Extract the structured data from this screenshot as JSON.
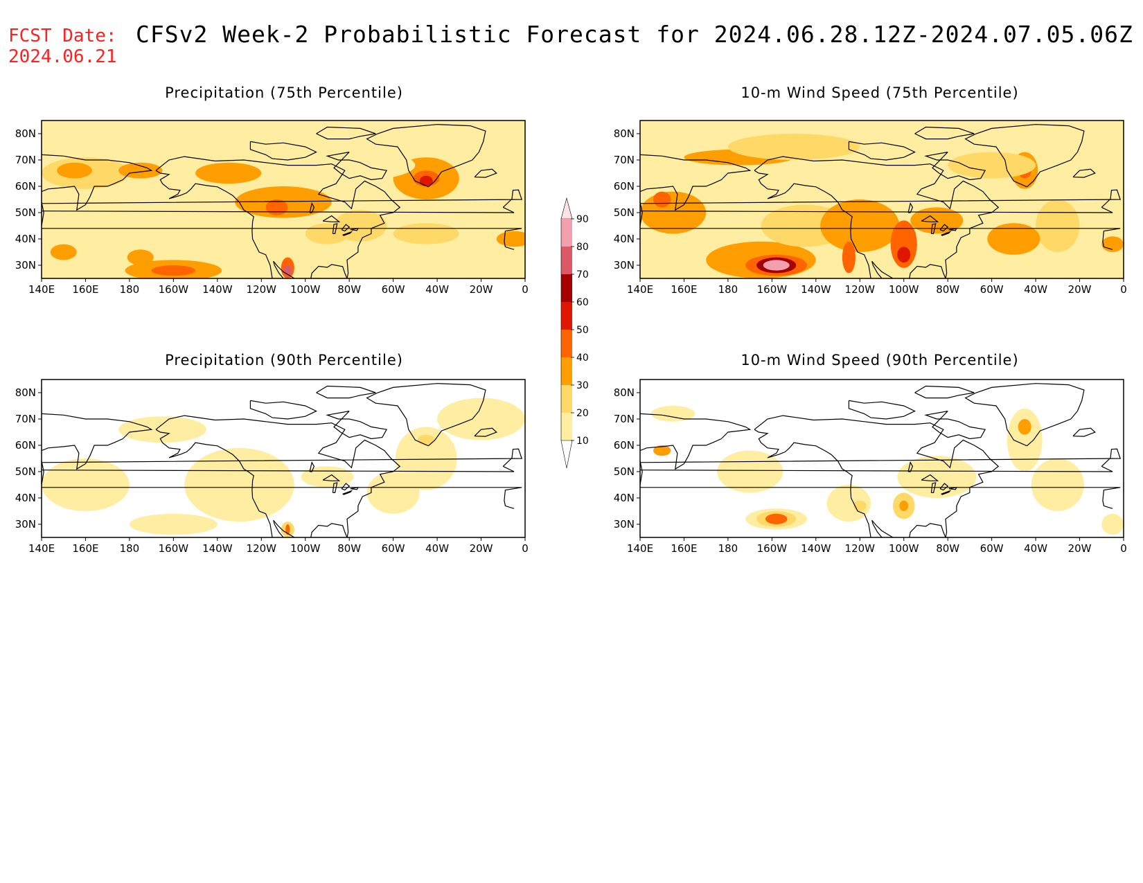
{
  "header": {
    "fcst_label": "FCST Date:",
    "fcst_date": "2024.06.21",
    "title": "CFSv2 Week-2 Probabilistic Forecast for 2024.06.28.12Z-2024.07.05.06Z"
  },
  "axes": {
    "lon_ticks": [
      "140E",
      "160E",
      "180",
      "160W",
      "140W",
      "120W",
      "100W",
      "80W",
      "60W",
      "40W",
      "20W",
      "0"
    ],
    "lat_ticks": [
      "80N",
      "70N",
      "60N",
      "50N",
      "40N",
      "30N"
    ]
  },
  "colorbar": {
    "levels": [
      10,
      20,
      30,
      40,
      50,
      60,
      70,
      80,
      90
    ],
    "colors": [
      "#ffffff",
      "#ffeea1",
      "#ffd968",
      "#ff9e00",
      "#ff6400",
      "#e11600",
      "#a50000",
      "#dc5a67",
      "#f2a0ae",
      "#fde2e6"
    ]
  },
  "panels": [
    {
      "title": "Precipitation (75th Percentile)",
      "background_level": 1,
      "blobs": [
        {
          "lon": -170,
          "lat": 77,
          "rx": 40,
          "ry": 4,
          "level": 1
        },
        {
          "lon": 160,
          "lat": 65,
          "rx": 20,
          "ry": 6,
          "level": 2
        },
        {
          "lon": 155,
          "lat": 66,
          "rx": 8,
          "ry": 3,
          "level": 3
        },
        {
          "lon": -175,
          "lat": 66,
          "rx": 10,
          "ry": 3,
          "level": 3
        },
        {
          "lon": -135,
          "lat": 65,
          "rx": 15,
          "ry": 4,
          "level": 3
        },
        {
          "lon": -150,
          "lat": 40,
          "rx": 12,
          "ry": 5,
          "level": 0
        },
        {
          "lon": -150,
          "lat": 40,
          "rx": 24,
          "ry": 8,
          "level": 1
        },
        {
          "lon": -160,
          "lat": 28,
          "rx": 22,
          "ry": 4,
          "level": 3
        },
        {
          "lon": -160,
          "lat": 28,
          "rx": 10,
          "ry": 2,
          "level": 4
        },
        {
          "lon": -110,
          "lat": 54,
          "rx": 22,
          "ry": 6,
          "level": 3
        },
        {
          "lon": -113,
          "lat": 52,
          "rx": 5,
          "ry": 3,
          "level": 4
        },
        {
          "lon": -108,
          "lat": 29,
          "rx": 3,
          "ry": 4,
          "level": 4
        },
        {
          "lon": -108,
          "lat": 28,
          "rx": 2,
          "ry": 2,
          "level": 7
        },
        {
          "lon": -45,
          "lat": 63,
          "rx": 15,
          "ry": 8,
          "level": 3
        },
        {
          "lon": -45,
          "lat": 63,
          "rx": 6,
          "ry": 3,
          "level": 4
        },
        {
          "lon": -45,
          "lat": 62,
          "rx": 3,
          "ry": 2,
          "level": 5
        },
        {
          "lon": -80,
          "lat": 68,
          "rx": 30,
          "ry": 6,
          "level": 1
        },
        {
          "lon": -75,
          "lat": 45,
          "rx": 12,
          "ry": 6,
          "level": 2
        },
        {
          "lon": -45,
          "lat": 42,
          "rx": 15,
          "ry": 4,
          "level": 2
        },
        {
          "lon": 150,
          "lat": 35,
          "rx": 6,
          "ry": 3,
          "level": 3
        },
        {
          "lon": -175,
          "lat": 33,
          "rx": 6,
          "ry": 3,
          "level": 3
        },
        {
          "lon": -5,
          "lat": 40,
          "rx": 8,
          "ry": 3,
          "level": 3
        },
        {
          "lon": -90,
          "lat": 42,
          "rx": 10,
          "ry": 4,
          "level": 2
        }
      ]
    },
    {
      "title": "10-m Wind Speed (75th Percentile)",
      "background_level": 1,
      "blobs": [
        {
          "lon": -165,
          "lat": 32,
          "rx": 25,
          "ry": 7,
          "level": 3
        },
        {
          "lon": -158,
          "lat": 30,
          "rx": 14,
          "ry": 4,
          "level": 4
        },
        {
          "lon": -158,
          "lat": 30,
          "rx": 9,
          "ry": 3,
          "level": 6
        },
        {
          "lon": -158,
          "lat": 30,
          "rx": 6,
          "ry": 2,
          "level": 8
        },
        {
          "lon": -145,
          "lat": 45,
          "rx": 20,
          "ry": 8,
          "level": 2
        },
        {
          "lon": 155,
          "lat": 50,
          "rx": 15,
          "ry": 8,
          "level": 3
        },
        {
          "lon": 150,
          "lat": 55,
          "rx": 4,
          "ry": 3,
          "level": 4
        },
        {
          "lon": -175,
          "lat": 71,
          "rx": 25,
          "ry": 3,
          "level": 3
        },
        {
          "lon": -120,
          "lat": 45,
          "rx": 18,
          "ry": 10,
          "level": 3
        },
        {
          "lon": -125,
          "lat": 33,
          "rx": 3,
          "ry": 6,
          "level": 4
        },
        {
          "lon": -100,
          "lat": 38,
          "rx": 6,
          "ry": 9,
          "level": 4
        },
        {
          "lon": -100,
          "lat": 34,
          "rx": 3,
          "ry": 3,
          "level": 5
        },
        {
          "lon": -85,
          "lat": 47,
          "rx": 12,
          "ry": 5,
          "level": 3
        },
        {
          "lon": -45,
          "lat": 66,
          "rx": 6,
          "ry": 7,
          "level": 3
        },
        {
          "lon": -45,
          "lat": 66,
          "rx": 3,
          "ry": 3,
          "level": 4
        },
        {
          "lon": -30,
          "lat": 45,
          "rx": 10,
          "ry": 10,
          "level": 2
        },
        {
          "lon": -50,
          "lat": 40,
          "rx": 12,
          "ry": 6,
          "level": 3
        },
        {
          "lon": -60,
          "lat": 68,
          "rx": 20,
          "ry": 5,
          "level": 2
        },
        {
          "lon": -150,
          "lat": 75,
          "rx": 30,
          "ry": 5,
          "level": 2
        },
        {
          "lon": -5,
          "lat": 38,
          "rx": 5,
          "ry": 3,
          "level": 3
        }
      ]
    },
    {
      "title": "Precipitation (90th Percentile)",
      "background_level": 0,
      "blobs": [
        {
          "lon": -45,
          "lat": 55,
          "rx": 14,
          "ry": 12,
          "level": 1
        },
        {
          "lon": -45,
          "lat": 62,
          "rx": 4,
          "ry": 2,
          "level": 2
        },
        {
          "lon": -20,
          "lat": 70,
          "rx": 20,
          "ry": 8,
          "level": 1
        },
        {
          "lon": -130,
          "lat": 45,
          "rx": 25,
          "ry": 14,
          "level": 1
        },
        {
          "lon": 160,
          "lat": 45,
          "rx": 20,
          "ry": 10,
          "level": 1
        },
        {
          "lon": -160,
          "lat": 30,
          "rx": 20,
          "ry": 4,
          "level": 1
        },
        {
          "lon": -108,
          "lat": 28,
          "rx": 3,
          "ry": 3,
          "level": 2
        },
        {
          "lon": -108,
          "lat": 28,
          "rx": 1,
          "ry": 2,
          "level": 4
        },
        {
          "lon": -90,
          "lat": 48,
          "rx": 12,
          "ry": 4,
          "level": 1
        },
        {
          "lon": -165,
          "lat": 66,
          "rx": 20,
          "ry": 5,
          "level": 1
        },
        {
          "lon": -60,
          "lat": 42,
          "rx": 12,
          "ry": 8,
          "level": 1
        }
      ]
    },
    {
      "title": "10-m Wind Speed (90th Percentile)",
      "background_level": 0,
      "blobs": [
        {
          "lon": -158,
          "lat": 32,
          "rx": 14,
          "ry": 4,
          "level": 1
        },
        {
          "lon": -158,
          "lat": 32,
          "rx": 9,
          "ry": 3,
          "level": 2
        },
        {
          "lon": -158,
          "lat": 32,
          "rx": 5,
          "ry": 2,
          "level": 4
        },
        {
          "lon": -100,
          "lat": 37,
          "rx": 5,
          "ry": 5,
          "level": 2
        },
        {
          "lon": -100,
          "lat": 37,
          "rx": 2,
          "ry": 2,
          "level": 3
        },
        {
          "lon": -85,
          "lat": 48,
          "rx": 18,
          "ry": 8,
          "level": 1
        },
        {
          "lon": -45,
          "lat": 62,
          "rx": 8,
          "ry": 12,
          "level": 1
        },
        {
          "lon": -45,
          "lat": 67,
          "rx": 3,
          "ry": 3,
          "level": 3
        },
        {
          "lon": -30,
          "lat": 45,
          "rx": 12,
          "ry": 10,
          "level": 1
        },
        {
          "lon": 155,
          "lat": 72,
          "rx": 10,
          "ry": 3,
          "level": 1
        },
        {
          "lon": 150,
          "lat": 58,
          "rx": 4,
          "ry": 2,
          "level": 3
        },
        {
          "lon": -125,
          "lat": 38,
          "rx": 10,
          "ry": 7,
          "level": 1
        },
        {
          "lon": -120,
          "lat": 37,
          "rx": 3,
          "ry": 2,
          "level": 2
        },
        {
          "lon": -170,
          "lat": 50,
          "rx": 15,
          "ry": 8,
          "level": 1
        },
        {
          "lon": -5,
          "lat": 30,
          "rx": 5,
          "ry": 4,
          "level": 1
        }
      ]
    }
  ]
}
